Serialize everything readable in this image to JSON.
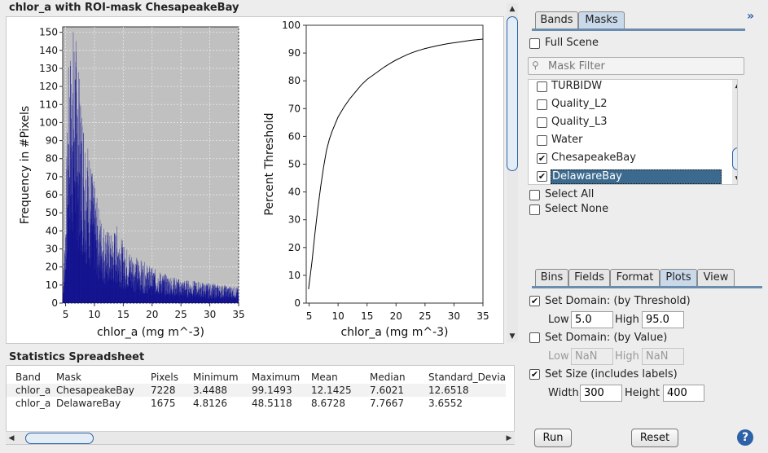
{
  "plot_title": "chlor_a with ROI-mask ChesapeakeBay",
  "chart_data": [
    {
      "type": "bar",
      "title": "",
      "xlabel": "chlor_a (mg m^-3)",
      "ylabel": "Frequency in #Pixels",
      "xlim": [
        4.5,
        35
      ],
      "ylim": [
        0,
        153
      ],
      "x_ticks": [
        5,
        10,
        15,
        20,
        25,
        30,
        35
      ],
      "y_ticks": [
        0,
        10,
        20,
        30,
        40,
        50,
        60,
        70,
        80,
        90,
        100,
        110,
        120,
        130,
        140,
        150
      ],
      "grid": true,
      "background": "#c0c0c0",
      "bar_color": "#00008b",
      "bin_count": 1000,
      "envelope": {
        "x": [
          4.5,
          5.0,
          5.5,
          6.0,
          6.5,
          7.0,
          7.5,
          8.0,
          8.5,
          9.0,
          10.0,
          11.0,
          12.0,
          13.0,
          14.0,
          15.0,
          16.0,
          17.0,
          18.0,
          20.0,
          22.0,
          25.0,
          28.0,
          30.0,
          33.0,
          35.0
        ],
        "y": [
          5,
          45,
          120,
          135,
          145,
          128,
          110,
          100,
          88,
          80,
          60,
          45,
          38,
          35,
          40,
          30,
          27,
          24,
          22,
          18,
          15,
          12,
          11,
          10,
          9,
          8
        ]
      }
    },
    {
      "type": "line",
      "title": "",
      "xlabel": "chlor_a (mg m^-3)",
      "ylabel": "Percent Threshold",
      "xlim": [
        4.5,
        35
      ],
      "ylim": [
        0,
        100
      ],
      "x_ticks": [
        5,
        10,
        15,
        20,
        25,
        30,
        35
      ],
      "y_ticks": [
        0,
        10,
        20,
        30,
        40,
        50,
        60,
        70,
        80,
        90,
        100
      ],
      "grid": false,
      "line_color": "#000000",
      "x": [
        4.9,
        5.5,
        6.0,
        6.5,
        7.0,
        7.5,
        8.0,
        8.5,
        9.0,
        9.5,
        10.0,
        11.0,
        12.0,
        13.0,
        14.0,
        15.0,
        16.0,
        17.0,
        18.0,
        19.0,
        20.0,
        21.0,
        22.0,
        23.0,
        24.0,
        25.0,
        27.0,
        29.0,
        31.0,
        33.0,
        35.0
      ],
      "y": [
        5,
        15,
        25,
        34,
        42,
        49,
        55,
        59,
        62,
        64.5,
        67,
        70.5,
        73.5,
        76,
        78.5,
        80.5,
        82,
        83.5,
        85,
        86.3,
        87.5,
        88.5,
        89.5,
        90.3,
        91,
        91.6,
        92.6,
        93.4,
        94,
        94.6,
        95
      ]
    }
  ],
  "stats": {
    "title": "Statistics Spreadsheet",
    "columns": [
      "Band",
      "Mask",
      "Pixels",
      "Minimum",
      "Maximum",
      "Mean",
      "Median",
      "Standard_Devia"
    ],
    "rows": [
      [
        "chlor_a",
        "ChesapeakeBay",
        "7228",
        "3.4488",
        "99.1493",
        "12.1425",
        "7.6021",
        "12.6518"
      ],
      [
        "chlor_a",
        "DelawareBay",
        "1675",
        "4.8126",
        "48.5118",
        "8.6728",
        "7.7667",
        "3.6552"
      ]
    ]
  },
  "top_tabs": {
    "bands": "Bands",
    "masks": "Masks",
    "active": "Masks"
  },
  "masks_panel": {
    "full_scene": "Full Scene",
    "filter_placeholder": "Mask Filter",
    "items": [
      {
        "label": "TURBIDW",
        "checked": false,
        "selected": false
      },
      {
        "label": "Quality_L2",
        "checked": false,
        "selected": false
      },
      {
        "label": "Quality_L3",
        "checked": false,
        "selected": false
      },
      {
        "label": "Water",
        "checked": false,
        "selected": false
      },
      {
        "label": "ChesapeakeBay",
        "checked": true,
        "selected": false
      },
      {
        "label": "DelawareBay",
        "checked": true,
        "selected": true
      }
    ],
    "select_all": "Select All",
    "select_none": "Select None"
  },
  "bottom_tabs": {
    "bins": "Bins",
    "fields": "Fields",
    "format": "Format",
    "plots": "Plots",
    "view": "View",
    "active": "Plots"
  },
  "plots_panel": {
    "domain_threshold_label": "Set Domain: (by Threshold)",
    "domain_threshold_checked": true,
    "low_label": "Low",
    "low_value": "5.0",
    "high_label": "High",
    "high_value": "95.0",
    "domain_value_label": "Set Domain: (by Value)",
    "domain_value_checked": false,
    "low_value_2": "NaN",
    "high_value_2": "NaN",
    "size_label": "Set Size (includes labels)",
    "size_checked": true,
    "width_label": "Width",
    "width_value": "300",
    "height_label": "Height",
    "height_value": "400"
  },
  "buttons": {
    "run": "Run",
    "reset": "Reset",
    "help": "?"
  },
  "glyphs": {
    "collapse": "»",
    "check": "✔",
    "arrow_up": "▲",
    "arrow_down": "▼",
    "arrow_left": "◀",
    "arrow_right": "▶",
    "search": "⚲"
  }
}
